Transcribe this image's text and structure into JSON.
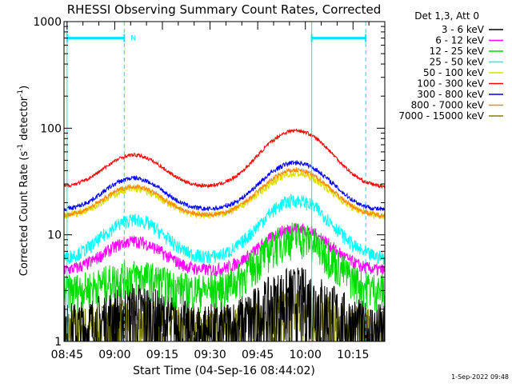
{
  "chart_data": {
    "type": "line",
    "title": "RHESSI Observing Summary Count Rates, Corrected",
    "ylabel_main": "Corrected Count Rate (s",
    "ylabel_sup1": "-1",
    "ylabel_mid": " detector",
    "ylabel_sup2": "-1",
    "ylabel_end": ")",
    "xlabel": "Start Time (04-Sep-16 08:44:02)",
    "footer": "1-Sep-2022 09:48",
    "y_scale": "log",
    "ylim": [
      1,
      1000
    ],
    "xlim": [
      "08:44:02",
      "10:25:00"
    ],
    "y_ticks": [
      "1",
      "10",
      "100",
      "1000"
    ],
    "x_ticks": [
      "08:45",
      "09:00",
      "09:15",
      "09:30",
      "09:45",
      "10:00",
      "10:15"
    ],
    "legend_header": "Det 1,3, Att 0",
    "night_label": "N",
    "legend_placement": "right",
    "night_intervals": [
      [
        "08:45",
        "09:03"
      ],
      [
        "10:02",
        "10:19"
      ]
    ],
    "series": [
      {
        "name": "3 - 6 keV",
        "color": "#000000",
        "base": 1.2,
        "peak1": 1.6,
        "peak2": 2.2,
        "noise": 0.9
      },
      {
        "name": "6 - 12 keV",
        "color": "#ff00ff",
        "base": 4.6,
        "peak1": 1.9,
        "peak2": 2.5,
        "noise": 0.14
      },
      {
        "name": "12 - 25 keV",
        "color": "#00dd00",
        "base": 3.0,
        "peak1": 1.4,
        "peak2": 3.2,
        "noise": 0.4
      },
      {
        "name": "25 - 50 keV",
        "color": "#00ffff",
        "base": 6.0,
        "peak1": 2.3,
        "peak2": 3.5,
        "noise": 0.15
      },
      {
        "name": "50 - 100 keV",
        "color": "#dddd00",
        "base": 15,
        "peak1": 1.8,
        "peak2": 2.5,
        "noise": 0.08
      },
      {
        "name": "100 - 300 keV",
        "color": "#ff0000",
        "base": 28,
        "peak1": 2.0,
        "peak2": 3.4,
        "noise": 0.04
      },
      {
        "name": "300 - 800 keV",
        "color": "#0000ff",
        "base": 17,
        "peak1": 2.0,
        "peak2": 2.8,
        "noise": 0.05
      },
      {
        "name": "800 - 7000 keV",
        "color": "#ff8800",
        "base": 15,
        "peak1": 1.9,
        "peak2": 2.7,
        "noise": 0.05
      },
      {
        "name": "7000 - 15000 keV",
        "color": "#808000",
        "base": 1.3,
        "peak1": 1.2,
        "peak2": 1.5,
        "noise": 0.6
      }
    ]
  }
}
